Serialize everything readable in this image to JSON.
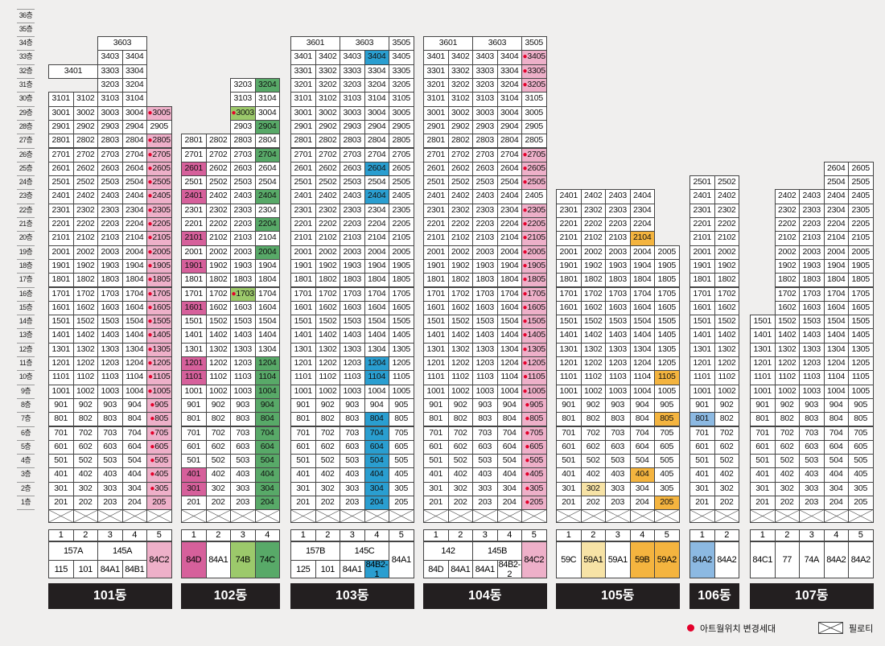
{
  "floor_suffix": "층",
  "floors_max": 36,
  "colors": {
    "pink": "#eeb0c9",
    "magenta": "#d6609b",
    "green": "#58a968",
    "lightgreen": "#9cc96b",
    "teal": "#2a9ed0",
    "lightblue": "#8cb9e2",
    "orange": "#f4b43f",
    "lightyellow": "#f7e3a6",
    "dot": "#e4002b"
  },
  "legend": {
    "dot_label": "아트월위치 변경세대",
    "pilotis_label": "필로티"
  },
  "buildings": [
    {
      "name": "101동",
      "lines": [
        "1",
        "2",
        "3",
        "4",
        "5"
      ],
      "line_data": [
        {
          "top": 31,
          "dot": []
        },
        {
          "top": 31,
          "dot": []
        },
        {
          "top": 34,
          "dot": []
        },
        {
          "top": 34,
          "dot": []
        },
        {
          "top": 30,
          "dot": [
            3,
            4,
            5,
            6,
            7,
            8,
            9,
            10,
            11,
            12,
            13,
            14,
            15,
            16,
            17,
            18,
            19,
            20,
            21,
            22,
            23,
            24,
            25,
            26,
            27,
            28,
            30
          ],
          "color_rows": {
            "2": "pink",
            "3": "pink",
            "4": "pink",
            "5": "pink",
            "6": "pink",
            "7": "pink",
            "8": "pink",
            "9": "pink",
            "10": "pink",
            "11": "pink",
            "12": "pink",
            "13": "pink",
            "14": "pink",
            "15": "pink",
            "16": "pink",
            "17": "pink",
            "18": "pink",
            "19": "pink",
            "20": "pink",
            "21": "pink",
            "22": "pink",
            "23": "pink",
            "24": "pink",
            "25": "pink",
            "26": "pink",
            "27": "pink",
            "28": "pink",
            "30": "pink"
          }
        }
      ],
      "tops": [
        {
          "floor": 33,
          "col": 0,
          "span": 2,
          "text": "3401"
        },
        {
          "floor": 35,
          "col": 2,
          "span": 2,
          "text": "3603"
        }
      ],
      "types_top": [
        {
          "span": 2,
          "text": "157A"
        },
        {
          "span": 2,
          "text": "145A"
        },
        {
          "span": 1,
          "text": "84C2",
          "rows": 2,
          "color": "pink"
        }
      ],
      "types_bottom": [
        {
          "span": 1,
          "text": "115"
        },
        {
          "span": 1,
          "text": "101"
        },
        {
          "span": 1,
          "text": "84A1"
        },
        {
          "span": 1,
          "text": "84B1"
        }
      ]
    },
    {
      "name": "102동",
      "lines": [
        "1",
        "2",
        "3",
        "4"
      ],
      "line_data": [
        {
          "top": 28,
          "dot": [],
          "color_rows": {
            "3": "magenta",
            "4": "magenta",
            "11": "magenta",
            "12": "magenta",
            "16": "magenta",
            "19": "magenta",
            "21": "magenta",
            "24": "magenta",
            "26": "magenta"
          }
        },
        {
          "top": 28,
          "dot": []
        },
        {
          "top": 32,
          "dot": [
            17,
            30
          ],
          "color_rows": {
            "17": "lightgreen",
            "30": "lightgreen"
          }
        },
        {
          "top": 32,
          "color_rows": {
            "2": "green",
            "3": "green",
            "4": "green",
            "5": "green",
            "6": "green",
            "7": "green",
            "8": "green",
            "9": "green",
            "10": "green",
            "11": "green",
            "12": "green",
            "20": "green",
            "22": "green",
            "24": "green",
            "27": "green",
            "29": "green",
            "32": "green"
          }
        }
      ],
      "tops": [],
      "types_top": [
        {
          "span": 1,
          "text": "84D",
          "rows": 2,
          "color": "magenta"
        },
        {
          "span": 1,
          "text": "84A1",
          "rows": 2
        },
        {
          "span": 1,
          "text": "74B",
          "rows": 2,
          "color": "lightgreen"
        },
        {
          "span": 1,
          "text": "74C",
          "rows": 2,
          "color": "green"
        }
      ],
      "types_bottom": []
    },
    {
      "name": "103동",
      "lines": [
        "1",
        "2",
        "3",
        "4",
        "5"
      ],
      "line_data": [
        {
          "top": 34
        },
        {
          "top": 34
        },
        {
          "top": 34
        },
        {
          "top": 34,
          "color_rows": {
            "2": "teal",
            "3": "teal",
            "4": "teal",
            "5": "teal",
            "6": "teal",
            "7": "teal",
            "8": "teal",
            "11": "teal",
            "12": "teal",
            "24": "teal",
            "26": "teal",
            "34": "teal"
          }
        },
        {
          "top": 35
        }
      ],
      "tops": [
        {
          "floor": 35,
          "col": 0,
          "span": 2,
          "text": "3601"
        },
        {
          "floor": 35,
          "col": 2,
          "span": 2,
          "text": "3603"
        }
      ],
      "types_top": [
        {
          "span": 2,
          "text": "157B"
        },
        {
          "span": 2,
          "text": "145C"
        },
        {
          "span": 1,
          "text": "84A1",
          "rows": 2
        }
      ],
      "types_bottom": [
        {
          "span": 1,
          "text": "125"
        },
        {
          "span": 1,
          "text": "101"
        },
        {
          "span": 1,
          "text": "84A1"
        },
        {
          "span": 1,
          "text": "84B2-1",
          "color": "teal"
        }
      ]
    },
    {
      "name": "104동",
      "lines": [
        "1",
        "2",
        "3",
        "4",
        "5"
      ],
      "line_data": [
        {
          "top": 34
        },
        {
          "top": 34
        },
        {
          "top": 34
        },
        {
          "top": 34
        },
        {
          "top": 35,
          "dot": [
            2,
            3,
            4,
            5,
            6,
            7,
            8,
            9,
            10,
            11,
            12,
            13,
            14,
            15,
            16,
            17,
            18,
            19,
            20,
            21,
            22,
            23,
            25,
            26,
            27,
            32,
            33,
            34
          ],
          "color_rows": {
            "2": "pink",
            "3": "pink",
            "4": "pink",
            "5": "pink",
            "6": "pink",
            "7": "pink",
            "8": "pink",
            "9": "pink",
            "10": "pink",
            "11": "pink",
            "12": "pink",
            "13": "pink",
            "14": "pink",
            "15": "pink",
            "16": "pink",
            "17": "pink",
            "18": "pink",
            "19": "pink",
            "20": "pink",
            "21": "pink",
            "22": "pink",
            "23": "pink",
            "25": "pink",
            "26": "pink",
            "27": "pink",
            "32": "pink",
            "33": "pink",
            "34": "pink"
          }
        }
      ],
      "tops": [
        {
          "floor": 35,
          "col": 0,
          "span": 2,
          "text": "3601"
        },
        {
          "floor": 35,
          "col": 2,
          "span": 2,
          "text": "3603"
        }
      ],
      "types_top": [
        {
          "span": 1,
          "text": "142",
          "wide": 2
        },
        {
          "span": 2,
          "text": "145B"
        },
        {
          "span": 1,
          "text": "84C2",
          "rows": 2,
          "color": "pink"
        }
      ],
      "types_bottom": [
        {
          "span": 1,
          "text": "84D"
        },
        {
          "span": 1,
          "text": "84A1"
        },
        {
          "span": 1,
          "text": "84A1"
        },
        {
          "span": 1,
          "text": "84B2-2"
        }
      ]
    },
    {
      "name": "105동",
      "lines": [
        "1",
        "2",
        "3",
        "4",
        "5"
      ],
      "line_data": [
        {
          "top": 24
        },
        {
          "top": 24,
          "color_rows": {
            "3": "lightyellow"
          }
        },
        {
          "top": 24
        },
        {
          "top": 24,
          "color_rows": {
            "4": "orange",
            "21": "orange"
          }
        },
        {
          "top": 20,
          "color_rows": {
            "2": "orange",
            "8": "orange",
            "11": "orange"
          }
        }
      ],
      "tops": [],
      "types_top": [
        {
          "span": 1,
          "text": "59C",
          "rows": 2
        },
        {
          "span": 1,
          "text": "59A1",
          "rows": 2,
          "color": "lightyellow"
        },
        {
          "span": 1,
          "text": "59A1",
          "rows": 2
        },
        {
          "span": 1,
          "text": "59B",
          "rows": 2,
          "color": "orange"
        },
        {
          "span": 1,
          "text": "59A2",
          "rows": 2,
          "color": "orange"
        }
      ],
      "types_bottom": []
    },
    {
      "name": "106동",
      "lines": [
        "1",
        "2"
      ],
      "line_data": [
        {
          "top": 25,
          "color_rows": {
            "8": "lightblue"
          }
        },
        {
          "top": 25
        }
      ],
      "tops": [],
      "types_top": [
        {
          "span": 1,
          "text": "84A2",
          "rows": 2,
          "color": "lightblue"
        },
        {
          "span": 1,
          "text": "84A2",
          "rows": 2
        }
      ],
      "types_bottom": []
    },
    {
      "name": "107동",
      "lines": [
        "1",
        "2",
        "3",
        "4",
        "5"
      ],
      "line_data": [
        {
          "top": 15
        },
        {
          "top": 24
        },
        {
          "top": 24
        },
        {
          "top": 26
        },
        {
          "top": 26
        }
      ],
      "tops": [],
      "types_top": [
        {
          "span": 1,
          "text": "84C1",
          "rows": 2
        },
        {
          "span": 1,
          "text": "77",
          "rows": 2
        },
        {
          "span": 1,
          "text": "74A",
          "rows": 2
        },
        {
          "span": 1,
          "text": "84A2",
          "rows": 2
        },
        {
          "span": 1,
          "text": "84A2",
          "rows": 2
        }
      ],
      "types_bottom": []
    }
  ]
}
